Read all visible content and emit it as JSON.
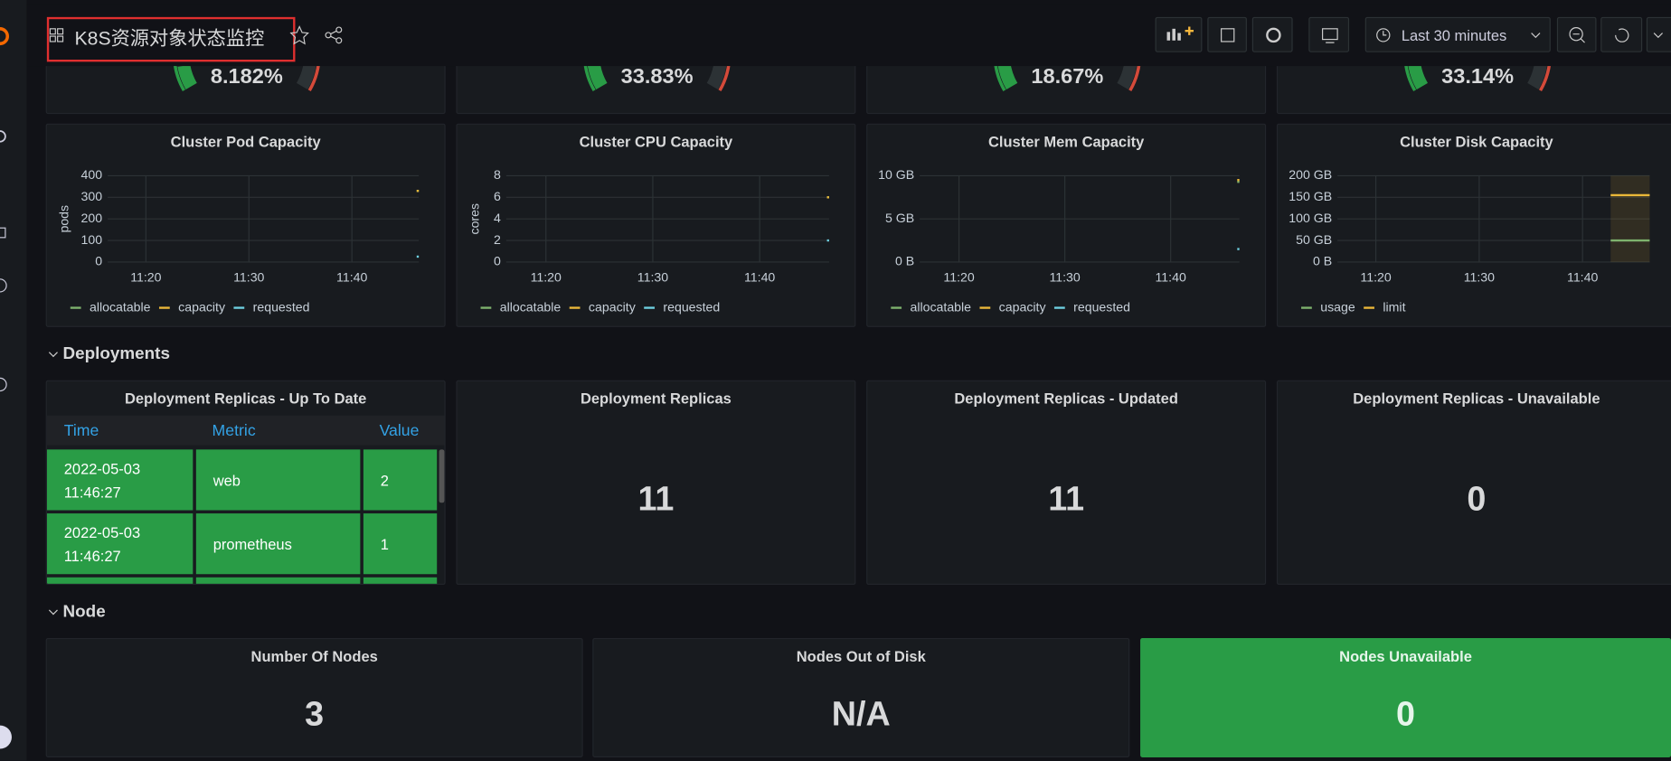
{
  "header": {
    "title": "K8S资源对象状态监控",
    "time_range": "Last 30 minutes"
  },
  "gauges": {
    "values": [
      8.182,
      33.83,
      18.67,
      33.14
    ],
    "value_labels": [
      "8.182%",
      "33.83%",
      "18.67%",
      "33.14%"
    ]
  },
  "charts": [
    {
      "title": "Cluster Pod Capacity",
      "y_label": "pods",
      "ylim": [
        0,
        400
      ],
      "yticks": [
        0,
        100,
        200,
        300,
        400
      ],
      "xticks": [
        "11:20",
        "11:30",
        "11:40"
      ],
      "series": [
        {
          "name": "allocatable",
          "color": "#7eb26d",
          "values": [
            330
          ]
        },
        {
          "name": "capacity",
          "color": "#eab839",
          "values": [
            330
          ]
        },
        {
          "name": "requested",
          "color": "#6ed0e0",
          "values": [
            25
          ]
        }
      ]
    },
    {
      "title": "Cluster CPU Capacity",
      "y_label": "cores",
      "ylim": [
        0,
        8
      ],
      "yticks": [
        0,
        2,
        4,
        6,
        8
      ],
      "xticks": [
        "11:20",
        "11:30",
        "11:40"
      ],
      "series": [
        {
          "name": "allocatable",
          "color": "#7eb26d",
          "values": [
            6
          ]
        },
        {
          "name": "capacity",
          "color": "#eab839",
          "values": [
            6
          ]
        },
        {
          "name": "requested",
          "color": "#6ed0e0",
          "values": [
            2
          ]
        }
      ]
    },
    {
      "title": "Cluster Mem Capacity",
      "ylim": [
        0,
        10
      ],
      "yticks": [
        {
          "value": 0,
          "label": "0 B"
        },
        {
          "value": 5,
          "label": "5 GB"
        },
        {
          "value": 10,
          "label": "10 GB"
        }
      ],
      "xticks": [
        "11:20",
        "11:30",
        "11:40"
      ],
      "series": [
        {
          "name": "allocatable",
          "color": "#7eb26d",
          "values": [
            9.3
          ]
        },
        {
          "name": "capacity",
          "color": "#eab839",
          "values": [
            9.5
          ]
        },
        {
          "name": "requested",
          "color": "#6ed0e0",
          "values": [
            1.5
          ]
        }
      ]
    },
    {
      "title": "Cluster Disk Capacity",
      "ylim": [
        0,
        200
      ],
      "yticks": [
        {
          "value": 0,
          "label": "0 B"
        },
        {
          "value": 50,
          "label": "50 GB"
        },
        {
          "value": 100,
          "label": "100 GB"
        },
        {
          "value": 150,
          "label": "150 GB"
        },
        {
          "value": 200,
          "label": "200 GB"
        }
      ],
      "xticks": [
        "11:20",
        "11:30",
        "11:40"
      ],
      "series": [
        {
          "name": "usage",
          "color": "#7eb26d",
          "values": [
            50
          ]
        },
        {
          "name": "limit",
          "color": "#eab839",
          "values": [
            155
          ]
        }
      ]
    }
  ],
  "sections": [
    "Deployments",
    "Node"
  ],
  "table": {
    "title": "Deployment Replicas - Up To Date",
    "columns": [
      "Time",
      "Metric",
      "Value"
    ],
    "rows": [
      [
        "2022-05-03 11:46:27",
        "web",
        2
      ],
      [
        "2022-05-03 11:46:27",
        "prometheus",
        1
      ]
    ]
  },
  "deployment_stats": [
    {
      "title": "Deployment Replicas",
      "value": 11
    },
    {
      "title": "Deployment Replicas - Updated",
      "value": 11
    },
    {
      "title": "Deployment Replicas - Unavailable",
      "value": 0
    }
  ],
  "node_stats": [
    {
      "title": "Number Of Nodes",
      "value": 3
    },
    {
      "title": "Nodes Out of Disk",
      "value": "N/A"
    },
    {
      "title": "Nodes Unavailable",
      "value": 0
    }
  ]
}
